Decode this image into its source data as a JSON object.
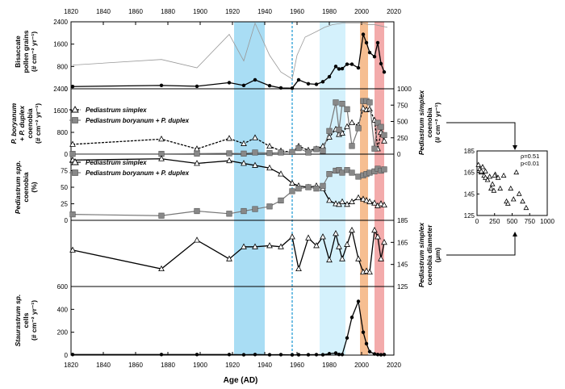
{
  "chart_data": {
    "type": "line",
    "xlabel": "Age (AD)",
    "x_range": [
      1820,
      2020
    ],
    "x_ticks": [
      "1820",
      "1840",
      "1860",
      "1880",
      "1900",
      "1920",
      "1940",
      "1960",
      "1980",
      "2000",
      "2020"
    ],
    "highlight_bands": [
      {
        "from": 1921,
        "to": 1940,
        "color": "#9ad7f2"
      },
      {
        "from": 1974,
        "to": 1990,
        "color": "#cdeefb"
      },
      {
        "from": 1999,
        "to": 2004,
        "color": "#f5b37e"
      },
      {
        "from": 2008,
        "to": 2014,
        "color": "#f19c9c"
      }
    ],
    "dashed_line": {
      "x": 1957,
      "color": "#2a9fd6"
    },
    "panels": [
      {
        "id": "bisaccate",
        "ylabel": [
          "Bisaccate",
          "pollen grains",
          "(# cm⁻² yr⁻¹)"
        ],
        "ylim_left": [
          0,
          2400
        ],
        "left_ticks": [
          "0",
          "800",
          "1600",
          "2400"
        ],
        "series": [
          {
            "name": "Bisaccate pollen grains",
            "style": "filled-circle",
            "x": [
              1821,
              1876,
              1898,
              1918,
              1927,
              1934,
              1943,
              1950,
              1957,
              1961,
              1967,
              1972,
              1976,
              1980,
              1984,
              1986,
              1988,
              1991,
              1994,
              1998,
              2001,
              2003,
              2005,
              2008,
              2010,
              2012,
              2014
            ],
            "y": [
              80,
              120,
              90,
              220,
              120,
              320,
              110,
              30,
              20,
              320,
              180,
              160,
              250,
              430,
              800,
              710,
              720,
              880,
              880,
              750,
              1950,
              1650,
              1300,
              1150,
              1650,
              900,
              600
            ]
          },
          {
            "name": "Bisaccate pollen (reference profile)",
            "style": "thin-grey",
            "x": [
              1821,
              1876,
              1898,
              1918,
              1927,
              1934,
              1943,
              1950,
              1957,
              1960,
              1965,
              1972,
              1977,
              1982,
              1988,
              1995,
              2001,
              2004,
              2008,
              2012,
              2016
            ],
            "y": [
              850,
              1050,
              750,
              1950,
              1000,
              2350,
              1200,
              600,
              350,
              1200,
              1850,
              2050,
              2200,
              2300,
              2350,
              2350,
              2350,
              2300,
              2300,
              2250,
              2200
            ]
          }
        ]
      },
      {
        "id": "pboryanum",
        "ylabel": [
          "P. boryanum",
          "+ P. duplex",
          "coenobia",
          "(# cm⁻² yr⁻¹)"
        ],
        "ylim_left": [
          0,
          2400
        ],
        "left_ticks": [
          "0",
          "800",
          "1600",
          "2400"
        ],
        "ylim_right": [
          0,
          1000
        ],
        "right_ticks": [
          "0",
          "250",
          "500",
          "750",
          "1000"
        ],
        "right_label": [
          "Pediastrum simplex",
          "coenobia",
          "(# cm⁻² yr⁻¹)"
        ],
        "series": [
          {
            "name": "Pediastrum simplex",
            "style": "open-triangle",
            "axis": "right",
            "x": [
              1821,
              1876,
              1898,
              1918,
              1927,
              1934,
              1943,
              1950,
              1957,
              1961,
              1967,
              1972,
              1976,
              1980,
              1984,
              1986,
              1988,
              1991,
              1994,
              1998,
              2001,
              2003,
              2005,
              2008,
              2010,
              2012,
              2014
            ],
            "y": [
              150,
              230,
              80,
              240,
              160,
              250,
              120,
              50,
              30,
              120,
              60,
              80,
              120,
              260,
              380,
              300,
              320,
              420,
              480,
              440,
              700,
              680,
              690,
              520,
              80,
              330,
              200
            ]
          },
          {
            "name": "Pediastrum boryanum + P. duplex",
            "style": "grey-square",
            "axis": "left",
            "x": [
              1821,
              1876,
              1898,
              1918,
              1927,
              1934,
              1943,
              1950,
              1957,
              1961,
              1967,
              1972,
              1976,
              1980,
              1984,
              1986,
              1988,
              1991,
              1994,
              1998,
              2001,
              2003,
              2005,
              2008,
              2010,
              2012,
              2014
            ],
            "y": [
              10,
              10,
              20,
              30,
              20,
              60,
              40,
              60,
              80,
              220,
              60,
              180,
              120,
              850,
              1900,
              900,
              1850,
              1650,
              300,
              950,
              1950,
              1950,
              1900,
              200,
              1150,
              1000,
              700
            ]
          }
        ]
      },
      {
        "id": "pediastrum_pct",
        "ylabel": [
          "Pediastrum spp.",
          "coenobia",
          "(%)"
        ],
        "ylim_left": [
          0,
          100
        ],
        "left_ticks": [
          "0",
          "25",
          "50",
          "75"
        ],
        "series": [
          {
            "name": "Pediastrum simplex",
            "style": "open-triangle",
            "x": [
              1821,
              1876,
              1898,
              1918,
              1927,
              1934,
              1943,
              1950,
              1957,
              1961,
              1967,
              1972,
              1976,
              1980,
              1984,
              1986,
              1988,
              1991,
              1994,
              1998,
              2001,
              2003,
              2005,
              2008,
              2010,
              2012,
              2014
            ],
            "y": [
              91,
              93,
              86,
              90,
              86,
              83,
              79,
              70,
              56,
              52,
              50,
              52,
              48,
              30,
              25,
              24,
              28,
              24,
              28,
              34,
              32,
              30,
              28,
              26,
              22,
              25,
              23
            ]
          },
          {
            "name": "Pediastrum boryanum + P. duplex",
            "style": "grey-square",
            "x": [
              1821,
              1876,
              1898,
              1918,
              1927,
              1934,
              1943,
              1950,
              1957,
              1961,
              1967,
              1972,
              1976,
              1980,
              1984,
              1986,
              1988,
              1991,
              1994,
              1998,
              2001,
              2003,
              2005,
              2008,
              2010,
              2012,
              2014
            ],
            "y": [
              9,
              7,
              14,
              10,
              14,
              17,
              21,
              30,
              44,
              48,
              50,
              48,
              52,
              70,
              75,
              76,
              72,
              76,
              72,
              66,
              68,
              70,
              72,
              74,
              78,
              75,
              77
            ]
          }
        ]
      },
      {
        "id": "diameter",
        "ylim_right": [
          125,
          185
        ],
        "right_ticks": [
          "125",
          "145",
          "165",
          "185"
        ],
        "right_label": [
          "Pediastrum simplex",
          "coenobia diameter",
          "(μm)"
        ],
        "series": [
          {
            "name": "Pediastrum simplex coenobia diameter",
            "style": "open-triangle",
            "x": [
              1821,
              1876,
              1898,
              1918,
              1927,
              1934,
              1943,
              1950,
              1957,
              1961,
              1967,
              1972,
              1976,
              1980,
              1984,
              1986,
              1988,
              1991,
              1994,
              1998,
              2001,
              2003,
              2005,
              2008,
              2010,
              2012,
              2014
            ],
            "y": [
              158,
              141,
              167,
              150,
              161,
              161,
              162,
              161,
              170,
              141,
              169,
              162,
              170,
              149,
              173,
              161,
              150,
              163,
              176,
              150,
              138,
              139,
              138,
              176,
              170,
              150,
              165
            ]
          }
        ]
      },
      {
        "id": "staurastrum",
        "ylabel": [
          "Staurastrum sp.",
          "cells",
          "(# cm⁻² yr⁻¹)"
        ],
        "ylim_left": [
          0,
          600
        ],
        "left_ticks": [
          "0",
          "200",
          "400",
          "600"
        ],
        "series": [
          {
            "name": "Staurastrum sp. cells",
            "style": "filled-circle",
            "x": [
              1821,
              1876,
              1898,
              1918,
              1927,
              1934,
              1943,
              1950,
              1957,
              1961,
              1967,
              1972,
              1976,
              1980,
              1984,
              1986,
              1988,
              1991,
              1994,
              1998,
              2001,
              2003,
              2005,
              2008,
              2010,
              2012,
              2014
            ],
            "y": [
              5,
              5,
              5,
              5,
              3,
              5,
              3,
              4,
              2,
              3,
              3,
              4,
              3,
              12,
              18,
              6,
              5,
              150,
              330,
              470,
              200,
              100,
              30,
              10,
              5,
              3,
              5
            ]
          }
        ]
      }
    ],
    "legend": {
      "simplex": "Pediastrum simplex",
      "boryanum": "Pediastrum boryanum + P. duplex"
    },
    "inset": {
      "type": "scatter",
      "x_ticks": [
        "0",
        "250",
        "500",
        "750",
        "1000"
      ],
      "y_ticks": [
        "125",
        "145",
        "165",
        "185"
      ],
      "xlim": [
        0,
        1000
      ],
      "ylim": [
        125,
        185
      ],
      "stat_rho": "ρ=0.51",
      "stat_p": "p<0.01",
      "x": [
        20,
        40,
        60,
        80,
        100,
        120,
        150,
        200,
        220,
        240,
        260,
        300,
        330,
        380,
        420,
        440,
        480,
        520,
        560,
        600,
        650,
        700,
        120,
        180,
        60,
        250
      ],
      "y": [
        172,
        168,
        165,
        170,
        162,
        160,
        158,
        150,
        154,
        148,
        163,
        160,
        150,
        162,
        138,
        136,
        150,
        140,
        165,
        145,
        138,
        132,
        166,
        161,
        166,
        162
      ]
    }
  }
}
